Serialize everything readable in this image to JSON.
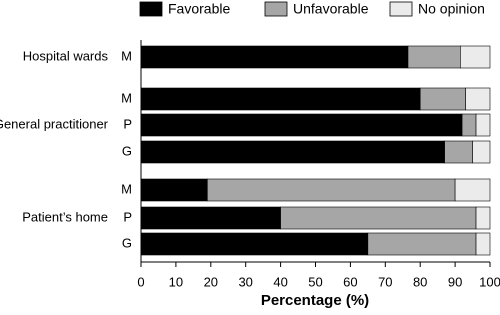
{
  "chart_data": {
    "type": "stacked-barh",
    "categories": [
      "M",
      "M",
      "P",
      "G",
      "M",
      "P",
      "G"
    ],
    "group_labels": [
      "Hospital wards",
      null,
      "General practitioner",
      null,
      null,
      "Patient’s home",
      null
    ],
    "series": [
      {
        "name": "Favorable",
        "color": "#000000",
        "values": [
          76.5,
          80,
          92,
          87,
          19,
          40,
          65
        ]
      },
      {
        "name": "Unfavorable",
        "color": "#a6a6a6",
        "values": [
          15,
          13,
          4,
          8,
          71,
          56,
          31
        ]
      },
      {
        "name": "No opinion",
        "color": "#ebebeb",
        "values": [
          8.5,
          7,
          4,
          5,
          10,
          4,
          4
        ]
      }
    ],
    "xlabel": "Percentage (%)",
    "xlim": [
      0,
      100
    ],
    "xticks": [
      0,
      10,
      20,
      30,
      40,
      50,
      60,
      70,
      80,
      90,
      100
    ],
    "legend": "top"
  }
}
